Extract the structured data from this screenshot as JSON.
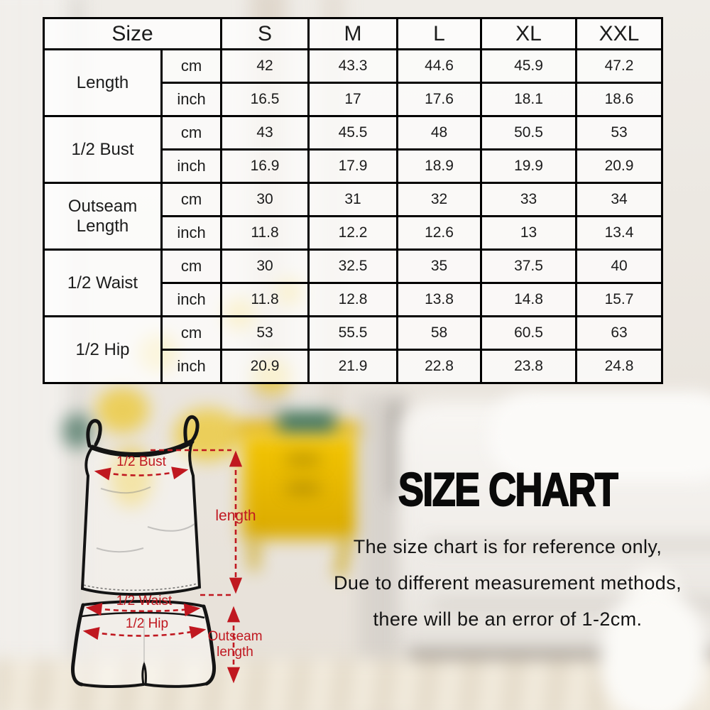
{
  "colors": {
    "accent_red": "#c01820",
    "table_border": "#000000",
    "nightstand_yellow": "#f4c603"
  },
  "title": "SIZE CHART",
  "notes": [
    "The size chart is for reference only,",
    "Due to different measurement methods,",
    "there will be an error of 1-2cm."
  ],
  "diagram": {
    "bust_label": "1/2 Bust",
    "length_label": "length",
    "waist_label": "1/2 Waist",
    "hip_label": "1/2 Hip",
    "outseam_label_line1": "Outseam",
    "outseam_label_line2": "length"
  },
  "chart_data": {
    "type": "table",
    "title": "SIZE CHART",
    "columns": [
      "Size",
      "S",
      "M",
      "L",
      "XL",
      "XXL"
    ],
    "unit_column_values": [
      "cm",
      "inch"
    ],
    "row_groups": [
      {
        "label": "Length",
        "cm": [
          "42",
          "43.3",
          "44.6",
          "45.9",
          "47.2"
        ],
        "inch": [
          "16.5",
          "17",
          "17.6",
          "18.1",
          "18.6"
        ]
      },
      {
        "label": "1/2 Bust",
        "cm": [
          "43",
          "45.5",
          "48",
          "50.5",
          "53"
        ],
        "inch": [
          "16.9",
          "17.9",
          "18.9",
          "19.9",
          "20.9"
        ]
      },
      {
        "label": "Outseam Length",
        "cm": [
          "30",
          "31",
          "32",
          "33",
          "34"
        ],
        "inch": [
          "11.8",
          "12.2",
          "12.6",
          "13",
          "13.4"
        ]
      },
      {
        "label": "1/2 Waist",
        "cm": [
          "30",
          "32.5",
          "35",
          "37.5",
          "40"
        ],
        "inch": [
          "11.8",
          "12.8",
          "13.8",
          "14.8",
          "15.7"
        ]
      },
      {
        "label": "1/2 Hip",
        "cm": [
          "53",
          "55.5",
          "58",
          "60.5",
          "63"
        ],
        "inch": [
          "20.9",
          "21.9",
          "22.8",
          "23.8",
          "24.8"
        ]
      }
    ]
  }
}
